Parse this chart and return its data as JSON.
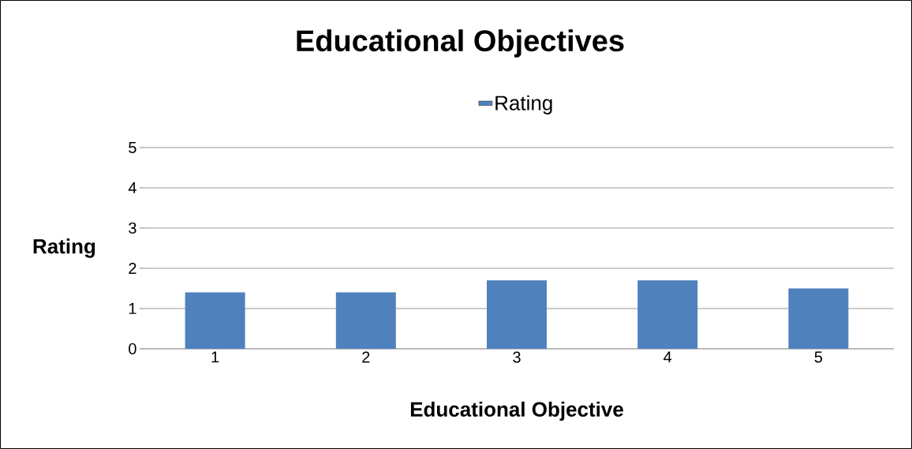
{
  "chart_data": {
    "type": "bar",
    "title": "Educational Objectives",
    "xlabel": "Educational Objective",
    "ylabel": "Rating",
    "categories": [
      "1",
      "2",
      "3",
      "4",
      "5"
    ],
    "series": [
      {
        "name": "Rating",
        "color": "#4f81bd",
        "values": [
          1.4,
          1.4,
          1.7,
          1.7,
          1.5
        ]
      }
    ],
    "ylim": [
      0,
      5
    ],
    "yticks": [
      0,
      1,
      2,
      3,
      4,
      5
    ],
    "grid": "y",
    "legend": "top"
  }
}
